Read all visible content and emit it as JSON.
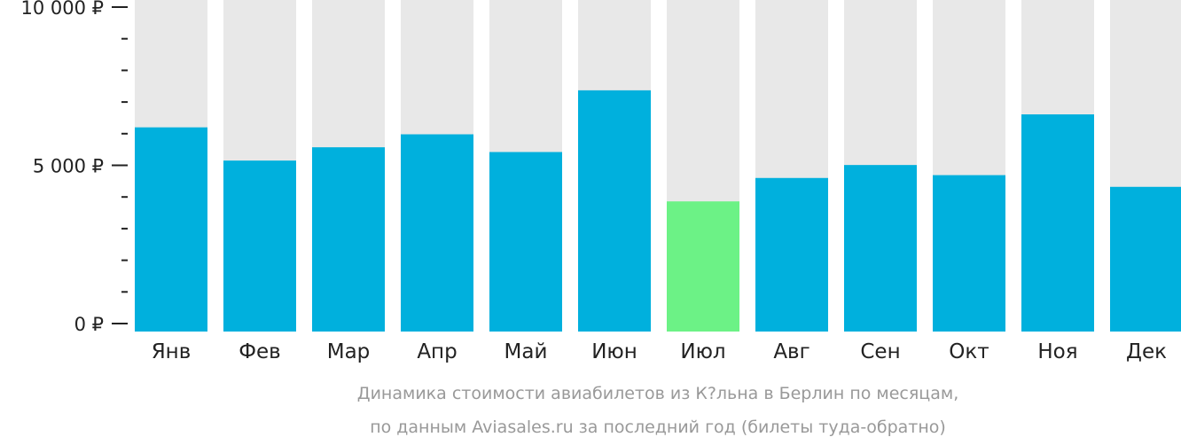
{
  "chart_data": {
    "type": "bar",
    "categories": [
      "Янв",
      "Фев",
      "Мар",
      "Апр",
      "Май",
      "Июн",
      "Июл",
      "Авг",
      "Сен",
      "Окт",
      "Ноя",
      "Дек"
    ],
    "values": [
      6200,
      5150,
      5570,
      5980,
      5420,
      7370,
      3860,
      4600,
      5010,
      4690,
      6610,
      4320
    ],
    "ylim": [
      0,
      10000
    ],
    "yticks": [
      {
        "value": 0,
        "label": "0 ₽"
      },
      {
        "value": 5000,
        "label": "5 000 ₽"
      },
      {
        "value": 10000,
        "label": "10 000 ₽"
      }
    ],
    "minor_tick_step": 1000,
    "highlight_index": 6,
    "colors": {
      "bar": "#00b0dd",
      "highlight": "#6cf286",
      "background_bar": "#e8e8e8",
      "axis": "#222222"
    },
    "caption_lines": [
      "Динамика стоимости авиабилетов из К?льна в Берлин по месяцам,",
      "по данным Aviasales.ru за последний год (билеты туда-обратно)"
    ]
  }
}
